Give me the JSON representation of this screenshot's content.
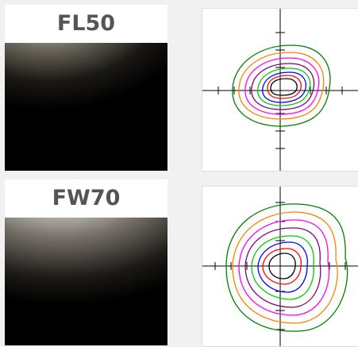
{
  "beams": [
    {
      "label": "FL50"
    },
    {
      "label": "FW70"
    }
  ],
  "colors": {
    "label_text": "#555555",
    "background": "#f1f1f1",
    "contours": [
      "#000000",
      "#0000ff",
      "#00cc00",
      "#ff0000",
      "#ff00ff",
      "#ff8000",
      "#008000"
    ]
  }
}
